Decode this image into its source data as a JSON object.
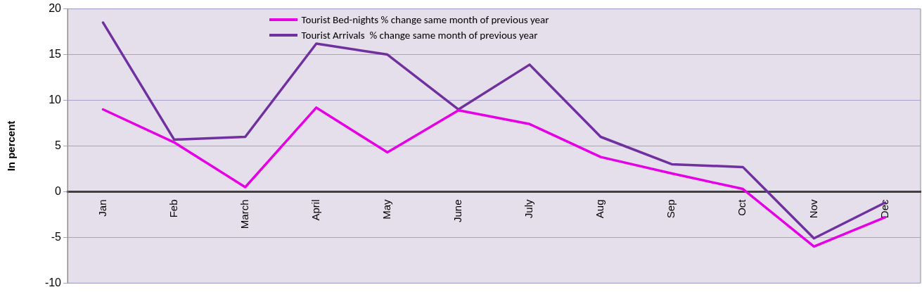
{
  "chart_data": {
    "type": "line",
    "ylabel": "In percent",
    "categories": [
      "Jan",
      "Feb",
      "March",
      "April",
      "May",
      "June",
      "July",
      "Aug",
      "Sep",
      "Oct",
      "Nov",
      "Dec"
    ],
    "series": [
      {
        "name": "Tourist Bed-nights % change same month of previous year",
        "color": "#e600e6",
        "values": [
          9.0,
          5.4,
          0.5,
          9.2,
          4.3,
          8.9,
          7.4,
          3.8,
          2.0,
          0.3,
          -6.0,
          -2.8
        ]
      },
      {
        "name": "Tourist Arrivals  % change same month of previous year",
        "color": "#7030a0",
        "values": [
          18.5,
          5.7,
          6.0,
          16.2,
          15.0,
          9.0,
          13.9,
          6.0,
          3.0,
          2.7,
          -5.1,
          -1.2
        ]
      }
    ],
    "ylim": [
      -10,
      20
    ],
    "yticks": [
      -10,
      -5,
      0,
      5,
      10,
      15,
      20
    ],
    "grid": "y",
    "legend": "top",
    "marker": "none",
    "line_style": "solid"
  }
}
